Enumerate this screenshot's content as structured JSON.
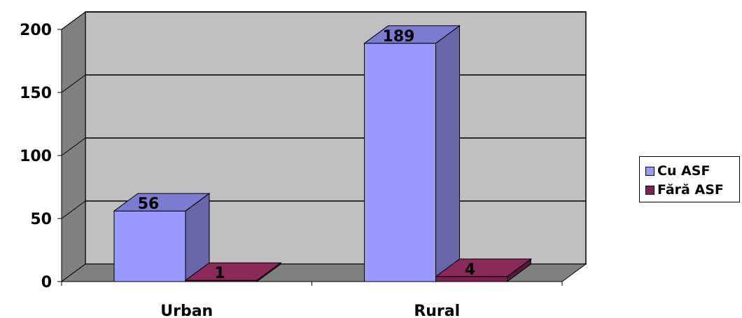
{
  "chart_data": {
    "type": "bar",
    "categories": [
      "Urban",
      "Rural"
    ],
    "series": [
      {
        "name": "Cu ASF",
        "values": [
          56,
          189
        ],
        "color": "#9999ff",
        "side_color": "#6666a8",
        "top_color": "#7b7bd0"
      },
      {
        "name": "Fără ASF",
        "values": [
          1,
          4
        ],
        "color": "#7f2050",
        "side_color": "#5a1638",
        "top_color": "#8a2a5a"
      }
    ],
    "yticks": [
      "0",
      "50",
      "100",
      "150",
      "200"
    ],
    "ylim": [
      0,
      200
    ],
    "grid": true,
    "legend_position": "right",
    "plot_colors": {
      "back_wall": "#c0c0c0",
      "side_wall": "#808080",
      "floor": "#808080"
    }
  }
}
